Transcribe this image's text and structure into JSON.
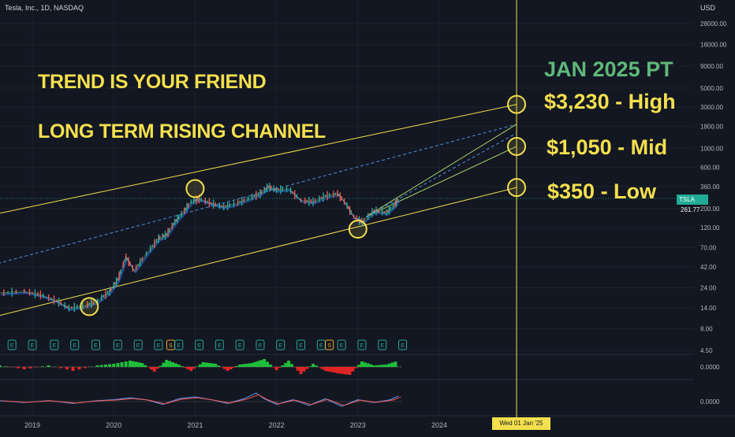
{
  "header": {
    "symbol_title": "Tesla, Inc., 1D, NASDAQ",
    "currency": "USD"
  },
  "annotations": {
    "headline_1": "TREND IS YOUR FRIEND",
    "headline_2": "LONG TERM RISING CHANNEL",
    "pt_title": "JAN 2025 PT",
    "target_high": "$3,230 - High",
    "target_mid": "$1,050 - Mid",
    "target_low": "$350 - Low"
  },
  "price_tag": {
    "symbol": "TSLA",
    "value": "261.77"
  },
  "date_tag": "Wed 01 Jan '25",
  "colors": {
    "background": "#131722",
    "channel_line": "#f4e04d",
    "midline": "#4a90d9",
    "up_candle": "#26a69a",
    "down_candle": "#ef5350",
    "headline_text": "#f4e04d",
    "pt_title_text": "#5fb87a",
    "price_tag_bg": "#22ab94",
    "earnings_marker": "#26a69a",
    "dividend_marker": "#f0a830"
  },
  "chart_data": {
    "type": "line",
    "scale": "log",
    "y_ticks": [
      28000,
      16000,
      9000,
      5000,
      3000,
      1800,
      1000,
      600,
      360,
      200,
      120,
      70,
      42,
      24,
      14,
      8,
      4.5
    ],
    "y_tick_labels": [
      "28000.00",
      "16000.00",
      "9000.00",
      "5000.00",
      "3000.00",
      "1800.00",
      "1000.00",
      "600.00",
      "360.00",
      "200.00",
      "120.00",
      "70.00",
      "42.00",
      "24.00",
      "14.00",
      "8.00",
      "4.50"
    ],
    "x_ticks": [
      2019,
      2020,
      2021,
      2022,
      2023,
      2024
    ],
    "x_tick_labels": [
      "2019",
      "2020",
      "2021",
      "2022",
      "2023",
      "2024"
    ],
    "price_series": {
      "x": [
        2018.6,
        2018.9,
        2019.1,
        2019.3,
        2019.45,
        2019.65,
        2019.8,
        2019.95,
        2020.05,
        2020.15,
        2020.25,
        2020.4,
        2020.55,
        2020.65,
        2020.75,
        2020.85,
        2020.95,
        2021.05,
        2021.2,
        2021.35,
        2021.5,
        2021.65,
        2021.8,
        2021.9,
        2022.0,
        2022.15,
        2022.3,
        2022.45,
        2022.6,
        2022.75,
        2022.85,
        2022.95,
        2023.05,
        2023.2,
        2023.35,
        2023.45,
        2023.5
      ],
      "values": [
        21,
        22,
        20,
        17,
        14,
        15,
        17,
        22,
        30,
        55,
        38,
        60,
        90,
        100,
        140,
        180,
        240,
        260,
        230,
        210,
        230,
        260,
        300,
        360,
        330,
        340,
        250,
        240,
        280,
        300,
        230,
        160,
        140,
        190,
        180,
        220,
        262
      ]
    },
    "last_price": 261.77,
    "channel": {
      "upper": {
        "x": [
          2018.25,
          2024.95
        ],
        "values": [
          150,
          3230
        ]
      },
      "lower": {
        "x": [
          2018.25,
          2024.95
        ],
        "values": [
          9.5,
          350
        ]
      },
      "mid": {
        "x": [
          2018.25,
          2024.95
        ],
        "values": [
          38,
          1900
        ]
      },
      "forecast_high": {
        "x": [
          2023.1,
          2024.95
        ],
        "values": [
          160,
          1900
        ]
      },
      "forecast_mid": {
        "x": [
          2023.1,
          2024.95
        ],
        "values": [
          160,
          1050
        ]
      },
      "forecast_dash": {
        "x": [
          2023.1,
          2024.95
        ],
        "values": [
          160,
          1500
        ]
      }
    },
    "touch_points": [
      {
        "x": 2019.7,
        "value": 14.5
      },
      {
        "x": 2021.0,
        "value": 340
      },
      {
        "x": 2023.0,
        "value": 115
      },
      {
        "x": 2024.95,
        "value": 3230
      },
      {
        "x": 2024.95,
        "value": 1050
      },
      {
        "x": 2024.95,
        "value": 350
      }
    ],
    "target_date_x": 2024.95,
    "events": [
      {
        "x": 2018.75,
        "type": "E"
      },
      {
        "x": 2019.0,
        "type": "E"
      },
      {
        "x": 2019.27,
        "type": "E"
      },
      {
        "x": 2019.52,
        "type": "E"
      },
      {
        "x": 2019.78,
        "type": "E"
      },
      {
        "x": 2020.05,
        "type": "E"
      },
      {
        "x": 2020.3,
        "type": "E"
      },
      {
        "x": 2020.55,
        "type": "E"
      },
      {
        "x": 2020.7,
        "type": "S"
      },
      {
        "x": 2020.8,
        "type": "E"
      },
      {
        "x": 2021.05,
        "type": "E"
      },
      {
        "x": 2021.3,
        "type": "E"
      },
      {
        "x": 2021.55,
        "type": "E"
      },
      {
        "x": 2021.8,
        "type": "E"
      },
      {
        "x": 2022.05,
        "type": "E"
      },
      {
        "x": 2022.3,
        "type": "E"
      },
      {
        "x": 2022.55,
        "type": "E"
      },
      {
        "x": 2022.65,
        "type": "S"
      },
      {
        "x": 2022.8,
        "type": "E"
      },
      {
        "x": 2023.05,
        "type": "E"
      },
      {
        "x": 2023.3,
        "type": "E"
      },
      {
        "x": 2023.55,
        "type": "E"
      }
    ],
    "oscillator_1": {
      "y_tick_label": "0.0000",
      "x": [
        2018.6,
        2018.9,
        2019.2,
        2019.5,
        2019.8,
        2020.0,
        2020.2,
        2020.35,
        2020.5,
        2020.65,
        2020.8,
        2020.95,
        2021.1,
        2021.25,
        2021.4,
        2021.55,
        2021.7,
        2021.85,
        2022.0,
        2022.15,
        2022.3,
        2022.45,
        2022.6,
        2022.75,
        2022.9,
        2023.05,
        2023.2,
        2023.35,
        2023.5
      ],
      "values": [
        0.2,
        -0.3,
        0.2,
        -0.5,
        0.2,
        0.4,
        0.8,
        0.5,
        -0.6,
        0.9,
        0.3,
        -0.5,
        0.6,
        0.4,
        -0.5,
        0.3,
        0.5,
        1.0,
        -0.4,
        0.8,
        -0.9,
        0.4,
        -0.5,
        -0.8,
        -1.0,
        0.7,
        0.2,
        0.3,
        0.8
      ]
    },
    "oscillator_2": {
      "y_tick_label": "0.0000",
      "x": [
        2018.6,
        2018.9,
        2019.2,
        2019.5,
        2019.8,
        2020.0,
        2020.2,
        2020.4,
        2020.6,
        2020.8,
        2021.0,
        2021.2,
        2021.4,
        2021.6,
        2021.75,
        2021.85,
        2022.0,
        2022.2,
        2022.4,
        2022.6,
        2022.8,
        2023.0,
        2023.2,
        2023.4,
        2023.5
      ],
      "values": [
        0.1,
        -0.1,
        0.1,
        -0.2,
        0.1,
        0.2,
        0.4,
        0.2,
        -0.3,
        0.3,
        0.5,
        0.2,
        -0.2,
        0.3,
        0.9,
        0.3,
        -0.3,
        0.2,
        -0.4,
        0.3,
        -0.5,
        0.2,
        -0.1,
        0.2,
        0.6
      ]
    }
  }
}
